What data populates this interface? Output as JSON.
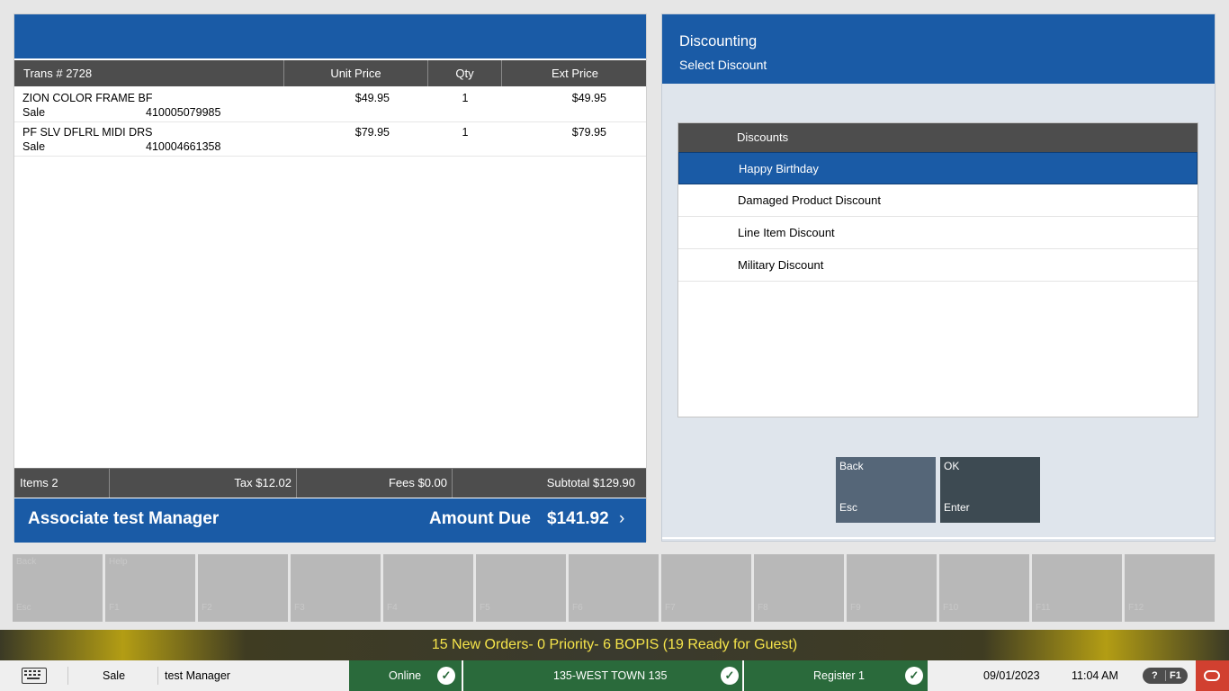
{
  "transaction": {
    "trans_label": "Trans #  2728",
    "columns": {
      "unit_price": "Unit Price",
      "qty": "Qty",
      "ext_price": "Ext Price"
    },
    "items": [
      {
        "description": "ZION COLOR FRAME BF",
        "type": "Sale",
        "sku": "410005079985",
        "unit_price": "$49.95",
        "qty": "1",
        "ext_price": "$49.95"
      },
      {
        "description": "PF SLV DFLRL MIDI DRS",
        "type": "Sale",
        "sku": "410004661358",
        "unit_price": "$79.95",
        "qty": "1",
        "ext_price": "$79.95"
      }
    ],
    "totals": {
      "items": "Items 2",
      "tax": "Tax $12.02",
      "fees": "Fees $0.00",
      "subtotal": "Subtotal $129.90"
    },
    "associate": "Associate test Manager",
    "amount_due_label": "Amount Due",
    "amount_due": "$141.92",
    "chevron": "›"
  },
  "discounting": {
    "title": "Discounting",
    "subtitle": "Select Discount",
    "list_header": "Discounts",
    "options": [
      "Happy Birthday",
      "Damaged Product Discount",
      "Line Item Discount",
      "Military Discount"
    ],
    "selected_index": 0,
    "back_button": {
      "label": "Back",
      "key": "Esc"
    },
    "ok_button": {
      "label": "OK",
      "key": "Enter"
    }
  },
  "function_keys": [
    {
      "label": "Back",
      "key": "Esc"
    },
    {
      "label": "Help",
      "key": "F1"
    },
    {
      "label": "",
      "key": "F2"
    },
    {
      "label": "",
      "key": "F3"
    },
    {
      "label": "",
      "key": "F4"
    },
    {
      "label": "",
      "key": "F5"
    },
    {
      "label": "",
      "key": "F6"
    },
    {
      "label": "",
      "key": "F7"
    },
    {
      "label": "",
      "key": "F8"
    },
    {
      "label": "",
      "key": "F9"
    },
    {
      "label": "",
      "key": "F10"
    },
    {
      "label": "",
      "key": "F11"
    },
    {
      "label": "",
      "key": "F12"
    }
  ],
  "notification": "15 New Orders- 0 Priority- 6 BOPIS (19 Ready for Guest)",
  "status_bar": {
    "mode": "Sale",
    "user": "test Manager",
    "connection": "Online",
    "store": "135-WEST TOWN 135",
    "register": "Register 1",
    "date": "09/01/2023",
    "time": "11:04 AM",
    "help_label": "?",
    "help_key": "F1",
    "check_glyph": "✓"
  },
  "colors": {
    "primary_blue": "#1a5ba6",
    "header_gray": "#4d4d4d",
    "status_green": "#2a6a3b",
    "notif_text": "#f5e44a"
  }
}
